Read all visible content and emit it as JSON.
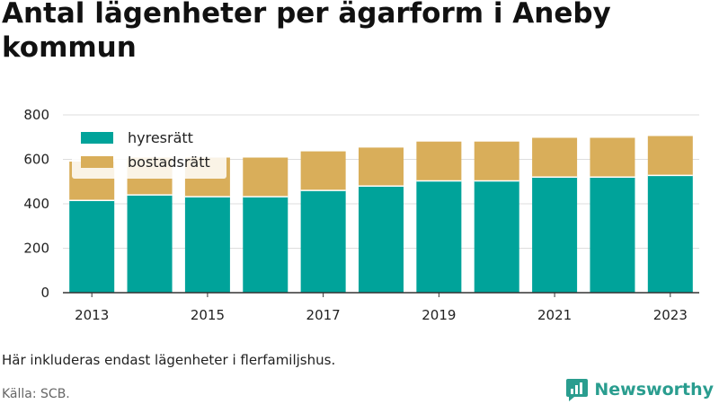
{
  "title": "Antal lägenheter per ägarform i Aneby kommun",
  "note": "Här inkluderas endast lägenheter i flerfamiljshus.",
  "source": "Källa: SCB.",
  "brand": "Newsworthy",
  "colors": {
    "hyresratt": "#00a39a",
    "bostadsratt": "#d9ae5a",
    "grid": "#dddddd",
    "axis": "#333333"
  },
  "chart_data": {
    "type": "bar",
    "stacked": true,
    "categories": [
      "2013",
      "2014",
      "2015",
      "2016",
      "2017",
      "2018",
      "2019",
      "2020",
      "2021",
      "2022",
      "2023"
    ],
    "x_tick_labels": [
      "2013",
      "2015",
      "2017",
      "2019",
      "2021",
      "2023"
    ],
    "series": [
      {
        "name": "hyresrätt",
        "values": [
          415,
          440,
          432,
          432,
          460,
          480,
          503,
          503,
          520,
          520,
          528
        ]
      },
      {
        "name": "bostadsrätt",
        "values": [
          175,
          168,
          176,
          176,
          176,
          173,
          177,
          177,
          177,
          177,
          177
        ]
      }
    ],
    "ylim": [
      0,
      800
    ],
    "yticks": [
      0,
      200,
      400,
      600,
      800
    ],
    "grid": true,
    "legend_position": "top-left"
  }
}
